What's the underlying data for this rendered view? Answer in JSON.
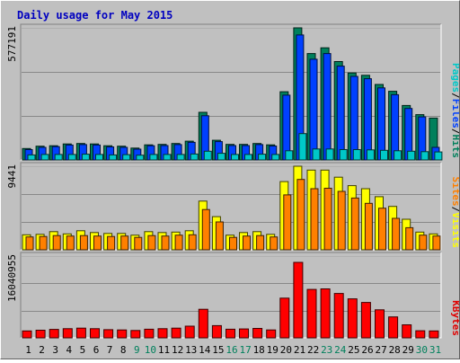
{
  "chart_data": {
    "type": "bar",
    "title": "Daily usage for May 2015",
    "categories": [
      "1",
      "2",
      "3",
      "4",
      "5",
      "6",
      "7",
      "8",
      "9",
      "10",
      "11",
      "12",
      "13",
      "14",
      "15",
      "16",
      "17",
      "18",
      "19",
      "20",
      "21",
      "22",
      "23",
      "24",
      "25",
      "26",
      "27",
      "28",
      "29",
      "30",
      "31"
    ],
    "weekend_days": [
      "9",
      "10",
      "16",
      "17",
      "23",
      "24",
      "30",
      "31"
    ],
    "panels": [
      {
        "id": "hits",
        "ymax_label": "577191",
        "ymax": 577191,
        "ylabel_parts": [
          {
            "text": "Pages",
            "color": "#00c8c8"
          },
          {
            "text": "/",
            "color": "#000000"
          },
          {
            "text": "Files",
            "color": "#0040ff"
          },
          {
            "text": "/",
            "color": "#000000"
          },
          {
            "text": "Hits",
            "color": "#00805c"
          }
        ],
        "series": [
          {
            "name": "Hits",
            "color": "#00805c",
            "values": [
              50000,
              60000,
              62000,
              70000,
              72000,
              70000,
              62000,
              60000,
              52000,
              66000,
              68000,
              72000,
              82000,
              208000,
              86000,
              68000,
              68000,
              72000,
              66000,
              298000,
              577191,
              465000,
              490000,
              430000,
              380000,
              370000,
              330000,
              300000,
              238000,
              198000,
              183000
            ]
          },
          {
            "name": "Files",
            "color": "#0040ff",
            "values": [
              45000,
              55000,
              58000,
              65000,
              67000,
              65000,
              57000,
              55000,
              47000,
              62000,
              63000,
              67000,
              77000,
              193000,
              80000,
              63000,
              63000,
              67000,
              61000,
              283000,
              546000,
              440000,
              465000,
              410000,
              365000,
              355000,
              315000,
              285000,
              225000,
              188000,
              55000
            ]
          },
          {
            "name": "Pages",
            "color": "#00c8c8",
            "values": [
              22000,
              24000,
              24000,
              24000,
              25000,
              24000,
              22000,
              23000,
              21000,
              24000,
              24000,
              24000,
              26000,
              38000,
              29000,
              24000,
              24000,
              25000,
              24000,
              40000,
              115000,
              48000,
              48000,
              45000,
              45000,
              44000,
              42000,
              40000,
              38000,
              36000,
              35000
            ]
          }
        ]
      },
      {
        "id": "visits",
        "ymax_label": "9441",
        "ymax": 9441,
        "ylabel_parts": [
          {
            "text": "Sites",
            "color": "#ff8000"
          },
          {
            "text": "/",
            "color": "#000000"
          },
          {
            "text": "Visits",
            "color": "#ffff00"
          }
        ],
        "series": [
          {
            "name": "Visits",
            "color": "#ffff00",
            "values": [
              1700,
              1750,
              2050,
              1800,
              2150,
              1950,
              1850,
              1850,
              1650,
              2050,
              1950,
              2000,
              2150,
              5500,
              3750,
              1650,
              1950,
              2050,
              1750,
              7700,
              9441,
              9000,
              9000,
              8200,
              7250,
              6900,
              6000,
              4900,
              3450,
              2000,
              1800
            ]
          },
          {
            "name": "Sites",
            "color": "#ff8000",
            "values": [
              1450,
              1500,
              1600,
              1550,
              1600,
              1550,
              1500,
              1550,
              1400,
              1600,
              1550,
              1650,
              1700,
              4550,
              3150,
              1400,
              1550,
              1600,
              1450,
              6200,
              7950,
              6900,
              6950,
              6600,
              5850,
              5250,
              4700,
              3550,
              2500,
              1650,
              1550
            ]
          }
        ]
      },
      {
        "id": "kbytes",
        "ymax_label": "16040955",
        "ymax": 16040955,
        "ylabel_parts": [
          {
            "text": "KBytes",
            "color": "#e00000"
          }
        ],
        "series": [
          {
            "name": "KBytes",
            "color": "#ff0000",
            "values": [
              1350000,
              1500000,
              1650000,
              1800000,
              1900000,
              1800000,
              1600000,
              1550000,
              1450000,
              1700000,
              1800000,
              1900000,
              2300000,
              5600000,
              2400000,
              1700000,
              1750000,
              1850000,
              1550000,
              7800000,
              14800000,
              9500000,
              9600000,
              8700000,
              7650000,
              6950000,
              5500000,
              4100000,
              2550000,
              1400000,
              1350000
            ]
          }
        ]
      }
    ]
  }
}
